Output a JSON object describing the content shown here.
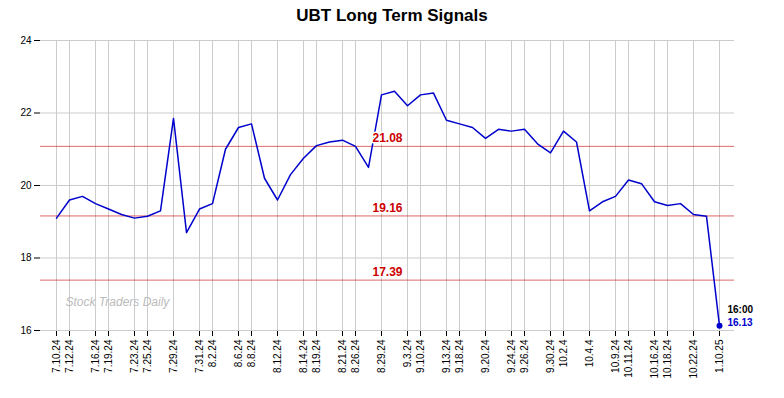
{
  "chart_data": {
    "type": "line",
    "title": "UBT Long Term Signals",
    "watermark": "Stock Traders Daily",
    "color": "#0000cc",
    "grid": true,
    "ylim": [
      16,
      24
    ],
    "yticks": [
      16,
      18,
      20,
      22,
      24
    ],
    "horizontal_lines": [
      {
        "y": 21.08,
        "label": "21.08",
        "color": "#cc0000"
      },
      {
        "y": 19.16,
        "label": "19.16",
        "color": "#cc0000"
      },
      {
        "y": 17.39,
        "label": "17.39",
        "color": "#cc0000"
      }
    ],
    "annotations": [
      "16:00",
      "16.13"
    ],
    "categories": [
      "7.10.24",
      "7.12.24",
      null,
      "7.16.24",
      "7.19.24",
      null,
      "7.23.24",
      "7.25.24",
      null,
      "7.29.24",
      null,
      "7.31.24",
      "8.2.24",
      null,
      "8.6.24",
      "8.8.24",
      null,
      "8.12.24",
      null,
      "8.14.24",
      "8.19.24",
      null,
      "8.21.24",
      "8.26.24",
      null,
      "8.29.24",
      null,
      "9.3.24",
      "9.10.24",
      null,
      "9.13.24",
      "9.18.24",
      null,
      "9.20.24",
      null,
      "9.24.24",
      "9.26.24",
      null,
      "9.30.24",
      "10.2.4",
      null,
      "10.4.4",
      null,
      "10.9.24",
      "10.11.24",
      null,
      "10.16.24",
      "10.18.24",
      null,
      "10.22.24",
      null,
      "1.10.25"
    ],
    "values": [
      19.1,
      19.6,
      19.7,
      19.5,
      19.35,
      19.2,
      19.1,
      19.15,
      19.3,
      21.85,
      18.7,
      19.35,
      19.5,
      21.0,
      21.6,
      21.7,
      20.2,
      19.6,
      20.3,
      20.75,
      21.1,
      21.2,
      21.25,
      21.08,
      20.5,
      22.5,
      22.6,
      22.2,
      22.5,
      22.55,
      21.8,
      21.7,
      21.6,
      21.3,
      21.55,
      21.5,
      21.55,
      21.15,
      20.9,
      21.5,
      21.2,
      19.3,
      19.55,
      19.7,
      20.15,
      20.05,
      19.55,
      19.45,
      19.5,
      19.2,
      19.15,
      16.13
    ]
  }
}
